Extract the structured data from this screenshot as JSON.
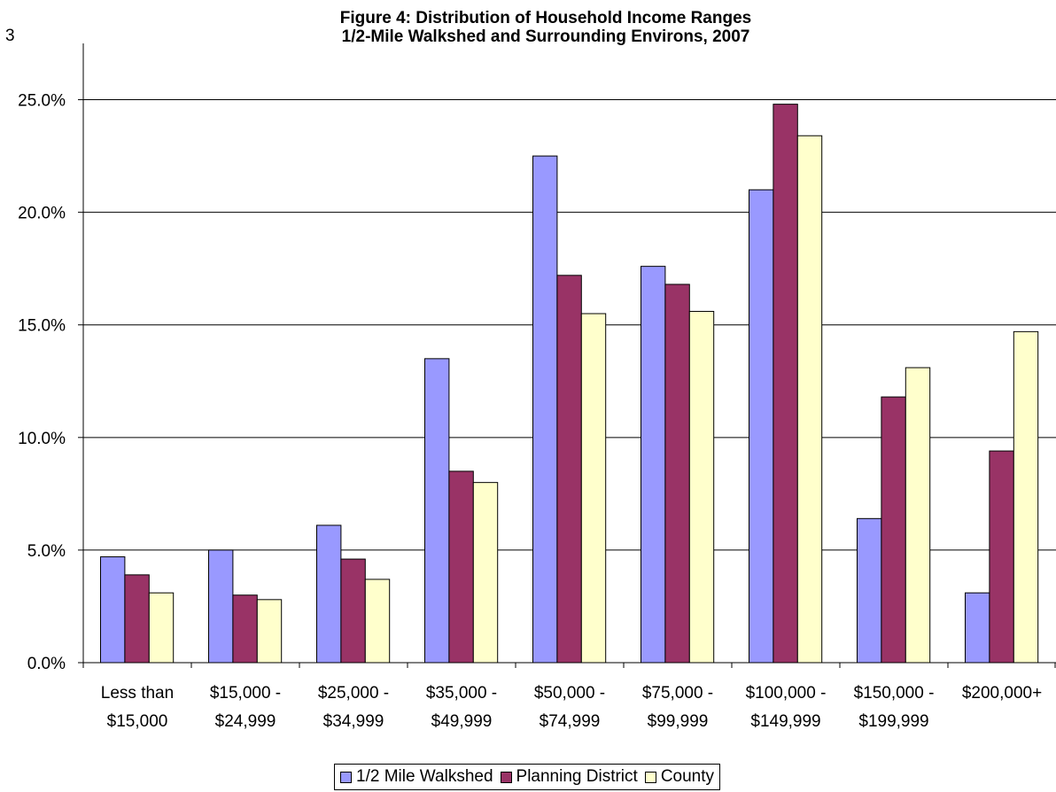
{
  "page_number": "3",
  "chart_data": {
    "type": "bar",
    "title": "Figure 4:  Distribution of Household Income Ranges",
    "subtitle": "1/2-Mile Walkshed and Surrounding Environs, 2007",
    "xlabel": "",
    "ylabel": "",
    "ylim": [
      0,
      27.5
    ],
    "yticks": [
      0,
      5,
      10,
      15,
      20,
      25
    ],
    "ytick_labels": [
      "0.0%",
      "5.0%",
      "10.0%",
      "15.0%",
      "20.0%",
      "25.0%"
    ],
    "grid": true,
    "legend_position": "bottom",
    "categories": [
      [
        "Less than",
        "$15,000"
      ],
      [
        "$15,000 -",
        "$24,999"
      ],
      [
        "$25,000 -",
        "$34,999"
      ],
      [
        "$35,000 -",
        "$49,999"
      ],
      [
        "$50,000 -",
        "$74,999"
      ],
      [
        "$75,000 -",
        "$99,999"
      ],
      [
        "$100,000 -",
        "$149,999"
      ],
      [
        "$150,000 -",
        "$199,999"
      ],
      [
        "$200,000+"
      ]
    ],
    "series": [
      {
        "name": "1/2 Mile Walkshed",
        "color": "#9999ff",
        "values": [
          4.7,
          5.0,
          6.1,
          13.5,
          22.5,
          17.6,
          21.0,
          6.4,
          3.1
        ]
      },
      {
        "name": "Planning District",
        "color": "#993366",
        "values": [
          3.9,
          3.0,
          4.6,
          8.5,
          17.2,
          16.8,
          24.8,
          11.8,
          9.4
        ]
      },
      {
        "name": "County",
        "color": "#ffffcc",
        "values": [
          3.1,
          2.8,
          3.7,
          8.0,
          15.5,
          15.6,
          23.4,
          13.1,
          14.7
        ]
      }
    ]
  }
}
